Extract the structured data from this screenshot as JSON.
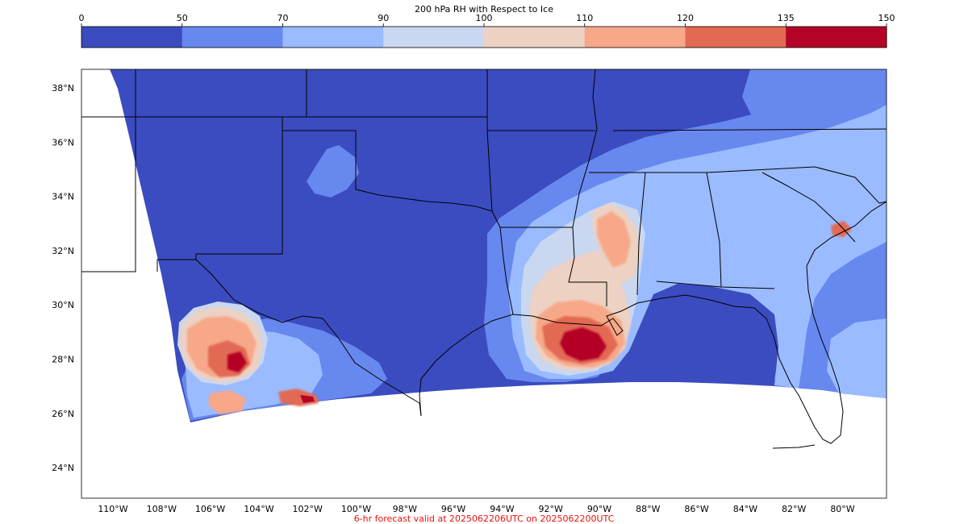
{
  "colorbar": {
    "title": "200 hPa RH with Respect to Ice",
    "ticks": [
      "0",
      "50",
      "70",
      "90",
      "100",
      "110",
      "120",
      "135",
      "150"
    ],
    "colors": [
      "#3b4cc0",
      "#6788ee",
      "#9abbff",
      "#c9d7f0",
      "#edd1c2",
      "#f7a889",
      "#e26952",
      "#b40426"
    ]
  },
  "map": {
    "lat_labels": [
      "38°N",
      "36°N",
      "34°N",
      "32°N",
      "30°N",
      "28°N",
      "26°N",
      "24°N"
    ],
    "lon_labels": [
      "110°W",
      "108°W",
      "106°W",
      "104°W",
      "102°W",
      "100°W",
      "98°W",
      "96°W",
      "94°W",
      "92°W",
      "90°W",
      "88°W",
      "86°W",
      "84°W",
      "82°W",
      "80°W"
    ],
    "background_color": "#3b4cc0",
    "boundary_color": "#000000"
  },
  "footer": {
    "valid_text": "6-hr forecast valid at 2025062206UTC on 2025062200UTC",
    "color": "#e8120c"
  }
}
